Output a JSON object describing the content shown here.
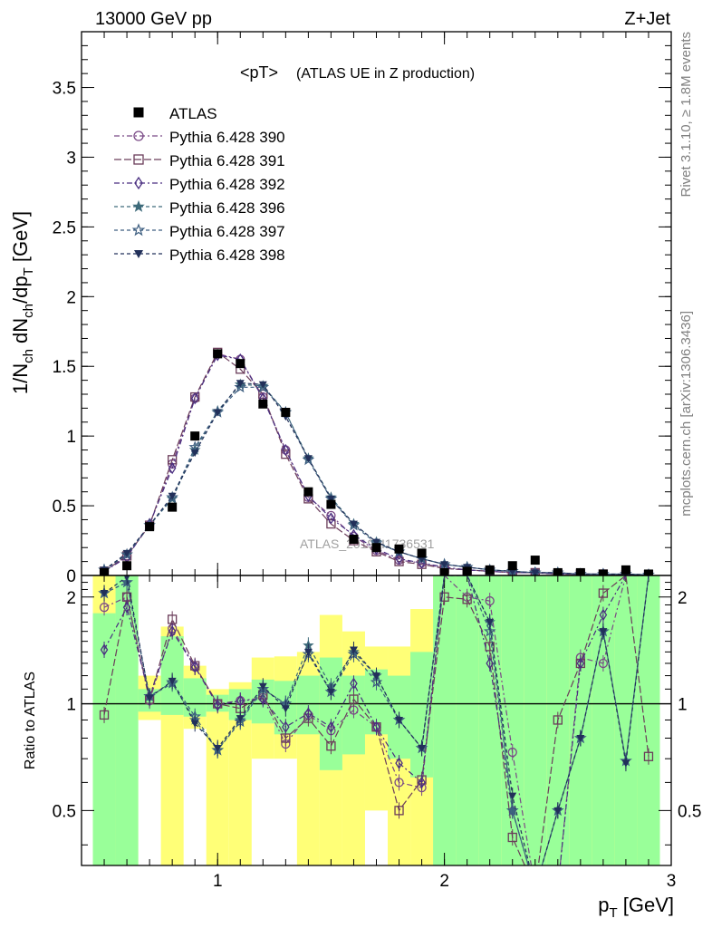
{
  "header": {
    "energy_label": "13000 GeV pp",
    "process_label": "Z+Jet"
  },
  "side_text": {
    "rivet": "Rivet 3.1.10, ≥ 1.8M events",
    "mcplots": "mcplots.cern.ch [arXiv:1306.3436]"
  },
  "chart_data": [
    {
      "type": "line",
      "title": "<pT>",
      "subtitle": "(ATLAS UE in Z production)",
      "xlabel": "p_T [GeV]",
      "ylabel": "1/N_ch dN_ch/dp_T [GeV]",
      "watermark": "ATLAS_2019_I1736531",
      "xlim": [
        0.4,
        3.0
      ],
      "ylim": [
        0,
        3.9
      ],
      "y_ticks": [
        0,
        0.5,
        1,
        1.5,
        2,
        2.5,
        3,
        3.5
      ],
      "y_tick_labels": [
        "0",
        "0.5",
        "1",
        "1.5",
        "2",
        "2.5",
        "3",
        "3.5"
      ],
      "x_ticks": [
        1,
        2,
        3
      ],
      "x_tick_labels": [
        "1",
        "2",
        "3"
      ],
      "legend_position": "top-left",
      "x": [
        0.5,
        0.6,
        0.7,
        0.8,
        0.9,
        1.0,
        1.1,
        1.2,
        1.3,
        1.4,
        1.5,
        1.6,
        1.7,
        1.8,
        1.9,
        2.0,
        2.1,
        2.2,
        2.3,
        2.4,
        2.5,
        2.6,
        2.7,
        2.8,
        2.9
      ],
      "data": {
        "name": "ATLAS",
        "values": [
          0.02,
          0.07,
          0.35,
          0.49,
          1.0,
          1.59,
          1.52,
          1.23,
          1.17,
          0.6,
          0.51,
          0.26,
          0.2,
          0.19,
          0.16,
          0.02,
          0.03,
          0.04,
          0.07,
          0.11,
          0.02,
          0.02,
          0.01,
          0.04,
          0.01
        ]
      },
      "series": [
        {
          "name": "Pythia 6.428 390",
          "color": "#7a4a86",
          "marker": "circle",
          "dash": "6,3,2,3",
          "values": [
            0.03,
            0.14,
            0.36,
            0.8,
            1.27,
            1.59,
            1.55,
            1.28,
            0.9,
            0.56,
            0.43,
            0.28,
            0.18,
            0.11,
            0.09,
            0.05,
            0.04,
            0.03,
            0.02,
            0.02,
            0.01,
            0.01,
            0.01,
            0.005,
            0.005
          ]
        },
        {
          "name": "Pythia 6.428 391",
          "color": "#6b3d5a",
          "marker": "square",
          "dash": "8,3",
          "values": [
            0.03,
            0.14,
            0.36,
            0.83,
            1.28,
            1.6,
            1.48,
            1.3,
            0.87,
            0.55,
            0.37,
            0.25,
            0.17,
            0.1,
            0.08,
            0.05,
            0.04,
            0.03,
            0.02,
            0.02,
            0.01,
            0.01,
            0.01,
            0.005,
            0.005
          ]
        },
        {
          "name": "Pythia 6.428 392",
          "color": "#4a2f80",
          "marker": "diamond",
          "dash": "6,3,2,3",
          "values": [
            0.03,
            0.13,
            0.37,
            0.77,
            1.27,
            1.58,
            1.55,
            1.27,
            0.9,
            0.57,
            0.41,
            0.29,
            0.19,
            0.12,
            0.09,
            0.06,
            0.04,
            0.03,
            0.02,
            0.02,
            0.01,
            0.01,
            0.01,
            0.005,
            0.005
          ]
        },
        {
          "name": "Pythia 6.428 396",
          "color": "#3d6a7a",
          "marker": "star-filled",
          "dash": "4,3",
          "values": [
            0.04,
            0.15,
            0.36,
            0.55,
            0.9,
            1.18,
            1.37,
            1.36,
            1.17,
            0.84,
            0.56,
            0.37,
            0.24,
            0.17,
            0.12,
            0.08,
            0.06,
            0.04,
            0.03,
            0.02,
            0.02,
            0.01,
            0.01,
            0.01,
            0.005
          ]
        },
        {
          "name": "Pythia 6.428 397",
          "color": "#3d5e80",
          "marker": "star-open",
          "dash": "4,3",
          "values": [
            0.04,
            0.15,
            0.36,
            0.56,
            0.92,
            1.17,
            1.35,
            1.35,
            1.17,
            0.83,
            0.55,
            0.36,
            0.23,
            0.17,
            0.12,
            0.08,
            0.06,
            0.04,
            0.03,
            0.02,
            0.02,
            0.01,
            0.01,
            0.01,
            0.005
          ]
        },
        {
          "name": "Pythia 6.428 398",
          "color": "#22305a",
          "marker": "triangle-down",
          "dash": "4,3",
          "values": [
            0.04,
            0.16,
            0.36,
            0.57,
            0.88,
            1.17,
            1.38,
            1.37,
            1.14,
            0.84,
            0.55,
            0.37,
            0.24,
            0.17,
            0.12,
            0.08,
            0.06,
            0.04,
            0.03,
            0.02,
            0.02,
            0.01,
            0.01,
            0.01,
            0.005
          ]
        }
      ]
    },
    {
      "type": "line",
      "title": "",
      "ylabel": "Ratio to ATLAS",
      "xlabel": "p_T [GeV]",
      "xlim": [
        0.4,
        3.0
      ],
      "ylim": [
        0.35,
        2.3
      ],
      "y_scale": "log",
      "reference_line": 1,
      "y_ticks": [
        0.5,
        1,
        2
      ],
      "y_tick_labels": [
        "0.5",
        "1",
        "2"
      ],
      "x_ticks": [
        1,
        2,
        3
      ],
      "x_tick_labels": [
        "1",
        "2",
        "3"
      ],
      "x": [
        0.5,
        0.6,
        0.7,
        0.8,
        0.9,
        1.0,
        1.1,
        1.2,
        1.3,
        1.4,
        1.5,
        1.6,
        1.7,
        1.8,
        1.9,
        2.0,
        2.1,
        2.2,
        2.3,
        2.4,
        2.5,
        2.6,
        2.7,
        2.8,
        2.9
      ],
      "bands": {
        "inner_color": "#99ff99",
        "outer_color": "#ffff77",
        "inner": [
          [
            0.35,
            1.8
          ],
          [
            0.35,
            2.3
          ],
          [
            0.95,
            1.1
          ],
          [
            0.93,
            1.55
          ],
          [
            0.92,
            1.18
          ],
          [
            0.95,
            1.06
          ],
          [
            0.9,
            1.1
          ],
          [
            0.88,
            1.17
          ],
          [
            0.82,
            1.16
          ],
          [
            0.82,
            1.2
          ],
          [
            0.65,
            1.35
          ],
          [
            0.72,
            1.2
          ],
          [
            0.82,
            1.25
          ],
          [
            0.7,
            1.2
          ],
          [
            0.62,
            1.4
          ],
          [
            0.35,
            2.3
          ],
          [
            0.35,
            2.3
          ],
          [
            0.35,
            2.3
          ],
          [
            0.35,
            2.3
          ],
          [
            0.35,
            2.3
          ],
          [
            0.35,
            2.3
          ],
          [
            0.35,
            2.3
          ],
          [
            0.35,
            2.3
          ],
          [
            0.35,
            2.3
          ],
          [
            0.35,
            2.3
          ]
        ],
        "outer": [
          [
            0.35,
            2.3
          ],
          [
            0.35,
            2.3
          ],
          [
            0.9,
            1.2
          ],
          [
            0.35,
            1.65
          ],
          [
            0.85,
            1.28
          ],
          [
            0.35,
            1.1
          ],
          [
            0.35,
            1.15
          ],
          [
            0.7,
            1.35
          ],
          [
            0.7,
            1.36
          ],
          [
            0.35,
            1.4
          ],
          [
            0.35,
            1.78
          ],
          [
            0.35,
            1.6
          ],
          [
            0.5,
            1.45
          ],
          [
            0.35,
            1.45
          ],
          [
            0.35,
            1.85
          ],
          [
            0.35,
            2.3
          ],
          [
            0.35,
            2.3
          ],
          [
            0.35,
            2.3
          ],
          [
            0.35,
            2.3
          ],
          [
            0.35,
            2.3
          ],
          [
            0.35,
            2.3
          ],
          [
            0.35,
            2.3
          ],
          [
            0.35,
            2.3
          ],
          [
            0.35,
            2.3
          ],
          [
            0.35,
            2.3
          ]
        ]
      },
      "series": [
        {
          "name": "Pythia 6.428 390",
          "color": "#7a4a86",
          "marker": "circle",
          "dash": "6,3,2,3",
          "values": [
            1.87,
            2.0,
            1.02,
            1.63,
            1.27,
            1.0,
            1.02,
            1.04,
            0.77,
            0.93,
            0.84,
            0.96,
            0.86,
            0.6,
            0.58,
            2.3,
            2.0,
            1.95,
            0.73,
            0.3,
            0.3,
            1.35,
            1.3,
            2.3,
            2.3
          ]
        },
        {
          "name": "Pythia 6.428 391",
          "color": "#6b3d5a",
          "marker": "square",
          "dash": "8,3",
          "values": [
            0.93,
            2.0,
            1.03,
            1.73,
            1.28,
            1.0,
            0.97,
            1.06,
            0.8,
            0.91,
            0.76,
            1.03,
            0.86,
            0.5,
            0.61,
            2.0,
            1.97,
            1.45,
            0.42,
            0.3,
            0.9,
            1.3,
            2.05,
            2.3,
            0.71
          ]
        },
        {
          "name": "Pythia 6.428 392",
          "color": "#4a2f80",
          "marker": "diamond",
          "dash": "6,3,2,3",
          "values": [
            1.42,
            1.87,
            1.05,
            1.6,
            1.27,
            0.99,
            1.02,
            1.03,
            0.86,
            0.94,
            0.86,
            1.14,
            0.86,
            0.68,
            0.6,
            2.3,
            2.3,
            1.3,
            0.5,
            0.3,
            0.3,
            1.3,
            1.78,
            2.3,
            2.3
          ]
        },
        {
          "name": "Pythia 6.428 396",
          "color": "#3d6a7a",
          "marker": "star-filled",
          "dash": "4,3",
          "values": [
            2.05,
            2.2,
            1.05,
            1.14,
            0.9,
            0.74,
            0.9,
            1.1,
            1.0,
            1.46,
            1.12,
            1.4,
            1.2,
            0.9,
            0.75,
            2.3,
            2.3,
            1.7,
            0.5,
            0.3,
            0.5,
            0.8,
            1.6,
            0.69,
            2.3
          ]
        },
        {
          "name": "Pythia 6.428 397",
          "color": "#3d5e80",
          "marker": "star-open",
          "dash": "4,3",
          "values": [
            2.05,
            2.2,
            1.05,
            1.15,
            0.92,
            0.74,
            0.89,
            1.1,
            1.0,
            1.38,
            1.08,
            1.38,
            1.15,
            0.9,
            0.75,
            2.3,
            2.3,
            1.6,
            0.5,
            0.3,
            0.5,
            0.8,
            1.6,
            0.69,
            2.3
          ]
        },
        {
          "name": "Pythia 6.428 398",
          "color": "#22305a",
          "marker": "triangle-down",
          "dash": "4,3",
          "values": [
            2.05,
            2.28,
            1.04,
            1.16,
            0.88,
            0.75,
            0.91,
            1.12,
            0.97,
            1.4,
            1.08,
            1.42,
            1.2,
            0.9,
            0.75,
            2.3,
            2.3,
            1.7,
            0.55,
            0.3,
            0.5,
            0.8,
            1.6,
            0.68,
            2.3
          ]
        }
      ]
    }
  ]
}
